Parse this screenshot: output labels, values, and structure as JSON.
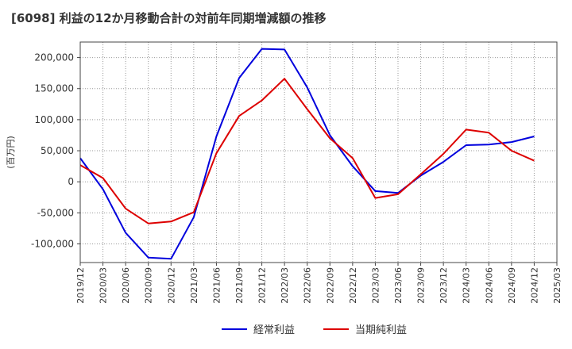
{
  "chart_data": {
    "type": "line",
    "title": "[6098]  利益の12か月移動合計の対前年同期増減額の推移",
    "ylabel": "(百万円)",
    "xlabel": "",
    "ylim": [
      -130000,
      225000
    ],
    "yticks": [
      200000,
      150000,
      100000,
      50000,
      0,
      -50000,
      -100000
    ],
    "ytick_labels": [
      "200,000",
      "150,000",
      "100,000",
      "50,000",
      "0",
      "-50,000",
      "-100,000"
    ],
    "x_labels": [
      "2019/12",
      "2020/03",
      "2020/06",
      "2020/09",
      "2020/12",
      "2021/03",
      "2021/06",
      "2021/09",
      "2021/12",
      "2022/03",
      "2022/06",
      "2022/09",
      "2022/12",
      "2023/03",
      "2023/06",
      "2023/09",
      "2023/12",
      "2024/03",
      "2024/06",
      "2024/09",
      "2024/12",
      "2025/03"
    ],
    "grid": true,
    "legend_position": "bottom",
    "series": [
      {
        "name": "経常利益",
        "color": "#0000dd",
        "values": [
          38000,
          -12000,
          -82000,
          -122000,
          -124000,
          -57000,
          73000,
          167000,
          214000,
          213000,
          152000,
          75000,
          25000,
          -15000,
          -18000,
          10000,
          32000,
          59000,
          60000,
          64000,
          73000,
          null
        ]
      },
      {
        "name": "当期純利益",
        "color": "#dd0000",
        "values": [
          27000,
          6000,
          -43000,
          -67000,
          -64000,
          -49000,
          46000,
          106000,
          131000,
          166000,
          117000,
          70000,
          38000,
          -26000,
          -20000,
          12000,
          45000,
          84000,
          79000,
          50000,
          34000,
          null
        ]
      }
    ]
  }
}
